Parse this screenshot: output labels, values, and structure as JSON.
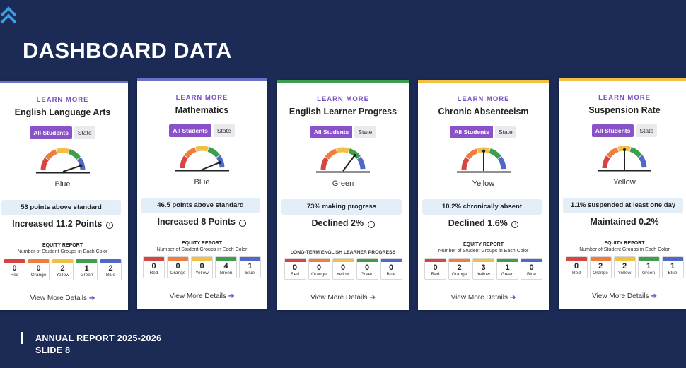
{
  "page": {
    "title": "DASHBOARD DATA",
    "footer_line1": "ANNUAL REPORT 2025-2026",
    "footer_line2": "SLIDE 8"
  },
  "colors": {
    "background": "#1c2b55",
    "red": "#d64541",
    "orange": "#ee7d3e",
    "yellow": "#f2bf45",
    "green": "#3f9d4e",
    "blue": "#5168c8",
    "accent_purple": "#8a52c9"
  },
  "color_names": [
    "Red",
    "Orange",
    "Yellow",
    "Green",
    "Blue"
  ],
  "cards": [
    {
      "learn_more": "LEARN MORE",
      "title": "English Language Arts",
      "tab_active": "All Students",
      "tab_inactive": "State",
      "level": "Blue",
      "needle_level": 0.92,
      "metric": "53 points above standard",
      "change": "Increased 11.2 Points",
      "change_icon": "up-circle-icon",
      "change_glyph": "↑",
      "equity_title": "EQUITY REPORT",
      "equity_subtitle": "Number of Student Groups in Each Color",
      "counts": [
        "0",
        "0",
        "2",
        "1",
        "2"
      ],
      "view_more": "View More Details"
    },
    {
      "learn_more": "LEARN MORE",
      "title": "Mathematics",
      "tab_active": "All Students",
      "tab_inactive": "State",
      "level": "Blue",
      "needle_level": 0.9,
      "metric": "46.5 points above standard",
      "change": "Increased 8 Points",
      "change_icon": "up-circle-icon",
      "change_glyph": "↑",
      "equity_title": "EQUITY REPORT",
      "equity_subtitle": "Number of Student Groups in Each Color",
      "counts": [
        "0",
        "0",
        "0",
        "4",
        "1"
      ],
      "view_more": "View More Details"
    },
    {
      "learn_more": "LEARN MORE",
      "title": "English Learner Progress",
      "tab_active": "All Students",
      "tab_inactive": "State",
      "level": "Green",
      "needle_level": 0.72,
      "metric": "73% making progress",
      "change": "Declined 2%",
      "change_icon": "down-circle-icon",
      "change_glyph": "↓",
      "equity_title": "",
      "equity_subtitle": "LONG-TERM ENGLISH LEARNER PROGRESS",
      "counts": [
        "0",
        "0",
        "0",
        "0",
        "0"
      ],
      "view_more": "View More Details"
    },
    {
      "learn_more": "LEARN MORE",
      "title": "Chronic Absenteeism",
      "tab_active": "All Students",
      "tab_inactive": "State",
      "level": "Yellow",
      "needle_level": 0.5,
      "metric": "10.2% chronically absent",
      "change": "Declined 1.6%",
      "change_icon": "down-circle-icon",
      "change_glyph": "↓",
      "equity_title": "EQUITY REPORT",
      "equity_subtitle": "Number of Student Groups in Each Color",
      "counts": [
        "0",
        "2",
        "3",
        "1",
        "0"
      ],
      "view_more": "View More Details"
    },
    {
      "learn_more": "LEARN MORE",
      "title": "Suspension Rate",
      "tab_active": "All Students",
      "tab_inactive": "State",
      "level": "Yellow",
      "needle_level": 0.5,
      "metric": "1.1% suspended at least one day",
      "change": "Maintained 0.2%",
      "change_icon": "",
      "change_glyph": "",
      "equity_title": "EQUITY REPORT",
      "equity_subtitle": "Number of Student Groups in Each Color",
      "counts": [
        "0",
        "2",
        "2",
        "1",
        "1"
      ],
      "view_more": "View More Details"
    }
  ]
}
